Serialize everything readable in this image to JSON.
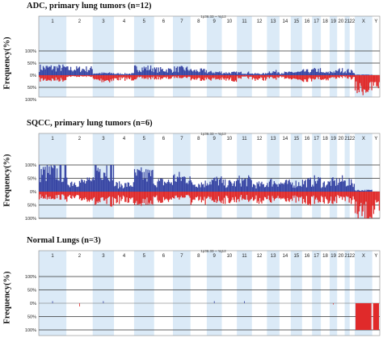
{
  "chart_data": [
    {
      "type": "bar",
      "title": "ADC, primary lung tumors (n=12)",
      "ylabel": "Frequency(%)",
      "region_label": "1p36.33 ~ Yq12",
      "x_categories": [
        "1",
        "2",
        "3",
        "4",
        "5",
        "6",
        "7",
        "8",
        "9",
        "10",
        "11",
        "12",
        "13",
        "14",
        "15",
        "16",
        "17",
        "18",
        "19",
        "20",
        "21",
        "22",
        "X",
        "Y"
      ],
      "yticks_gain": [
        "100%",
        "50%",
        "0%"
      ],
      "yticks_loss": [
        "50%",
        "100%"
      ],
      "ylim": [
        -100,
        100
      ],
      "series": [
        {
          "name": "gain",
          "color": "#3846a4",
          "values": [
            30,
            25,
            8,
            6,
            28,
            22,
            25,
            18,
            12,
            10,
            10,
            6,
            14,
            10,
            12,
            16,
            20,
            10,
            14,
            20,
            18,
            15,
            2,
            0
          ]
        },
        {
          "name": "loss",
          "color": "#e02a2a",
          "values": [
            -18,
            -5,
            -20,
            -15,
            -12,
            -12,
            -8,
            -15,
            -15,
            -18,
            -10,
            -15,
            -12,
            -10,
            -15,
            -18,
            -12,
            -15,
            -10,
            -8,
            -10,
            -12,
            -55,
            -40
          ]
        }
      ]
    },
    {
      "type": "bar",
      "title": "SQCC, primary lung tumors (n=6)",
      "ylabel": "Frequency(%)",
      "region_label": "1p36.33 ~ Yq12",
      "x_categories": [
        "1",
        "2",
        "3",
        "4",
        "5",
        "6",
        "7",
        "8",
        "9",
        "10",
        "11",
        "12",
        "13",
        "14",
        "15",
        "16",
        "17",
        "18",
        "19",
        "20",
        "21",
        "22",
        "X",
        "Y"
      ],
      "yticks_gain": [
        "100%",
        "50%",
        "0%"
      ],
      "yticks_loss": [
        "50%",
        "100%"
      ],
      "ylim": [
        -100,
        100
      ],
      "series": [
        {
          "name": "gain",
          "color": "#3846a4",
          "values": [
            70,
            35,
            85,
            25,
            60,
            35,
            50,
            30,
            40,
            30,
            40,
            25,
            35,
            30,
            30,
            35,
            40,
            30,
            35,
            40,
            35,
            30,
            5,
            0
          ]
        },
        {
          "name": "loss",
          "color": "#e02a2a",
          "values": [
            -20,
            -25,
            -40,
            -30,
            -35,
            -30,
            -20,
            -35,
            -30,
            -30,
            -25,
            -30,
            -30,
            -25,
            -30,
            -35,
            -30,
            -35,
            -30,
            -20,
            -30,
            -30,
            -80,
            -70
          ]
        }
      ]
    },
    {
      "type": "bar",
      "title": "Normal Lungs (n=3)",
      "ylabel": "Frequency(%)",
      "region_label": "1p36.33 ~ Yq12",
      "x_categories": [
        "1",
        "2",
        "3",
        "4",
        "5",
        "6",
        "7",
        "8",
        "9",
        "10",
        "11",
        "12",
        "13",
        "14",
        "15",
        "16",
        "17",
        "18",
        "19",
        "20",
        "21",
        "22",
        "X",
        "Y"
      ],
      "yticks_gain": [
        "100%",
        "50%",
        "0%"
      ],
      "yticks_loss": [
        "50%",
        "100%"
      ],
      "ylim": [
        -100,
        100
      ],
      "series": [
        {
          "name": "gain",
          "color": "#3846a4",
          "values": [
            8,
            0,
            8,
            0,
            0,
            0,
            0,
            0,
            8,
            0,
            8,
            0,
            0,
            0,
            0,
            0,
            0,
            0,
            0,
            0,
            0,
            0,
            0,
            0
          ]
        },
        {
          "name": "loss",
          "color": "#e02a2a",
          "values": [
            0,
            -12,
            0,
            0,
            0,
            0,
            0,
            0,
            0,
            0,
            0,
            0,
            0,
            0,
            0,
            0,
            0,
            0,
            -5,
            0,
            0,
            0,
            -100,
            -100
          ]
        }
      ]
    }
  ]
}
